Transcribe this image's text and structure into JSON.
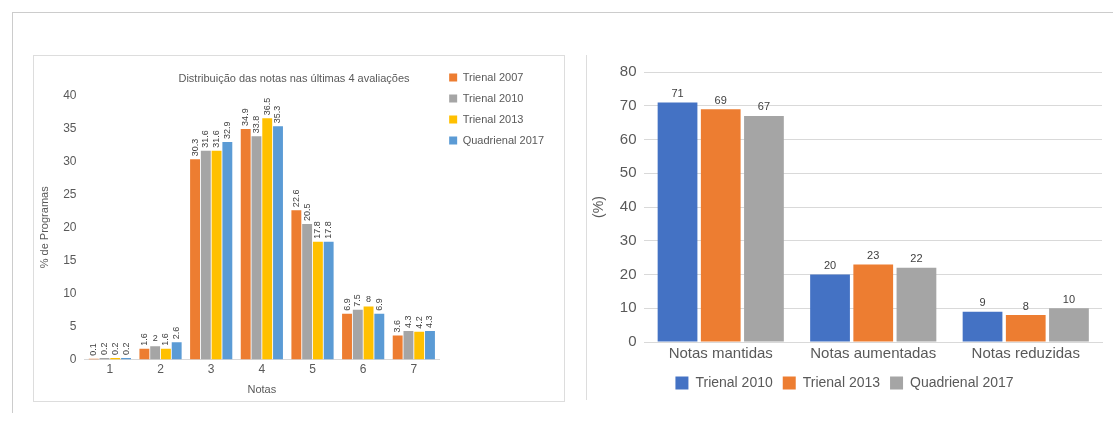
{
  "chart_data": [
    {
      "type": "bar",
      "title": "Distribuição das notas nas últimas 4 avaliações",
      "xlabel": "Notas",
      "ylabel": "% de Programas",
      "categories": [
        "1",
        "2",
        "3",
        "4",
        "5",
        "6",
        "7"
      ],
      "series": [
        {
          "name": "Trienal 2007",
          "color": "#ed7d31",
          "values": [
            0.1,
            1.6,
            30.3,
            34.9,
            22.6,
            6.9,
            3.6
          ]
        },
        {
          "name": "Trienal 2010",
          "color": "#a5a5a5",
          "values": [
            0.2,
            2,
            31.6,
            33.8,
            20.5,
            7.5,
            4.3
          ]
        },
        {
          "name": "Trienal 2013",
          "color": "#ffc000",
          "values": [
            0.2,
            1.6,
            31.6,
            36.5,
            17.8,
            8,
            4.2
          ]
        },
        {
          "name": "Quadrienal 2017",
          "color": "#5b9bd5",
          "values": [
            0.2,
            2.6,
            32.9,
            35.3,
            17.8,
            6.9,
            4.3
          ]
        }
      ],
      "ylim": [
        0,
        40
      ],
      "yticks": [
        0,
        5,
        10,
        15,
        20,
        25,
        30,
        35,
        40
      ],
      "grid": false,
      "legend": "right",
      "data_labels": true
    },
    {
      "type": "bar",
      "ylabel": "(%)",
      "categories": [
        "Notas mantidas",
        "Notas aumentadas",
        "Notas reduzidas"
      ],
      "series": [
        {
          "name": "Trienal 2010",
          "color": "#4472c4",
          "values": [
            71,
            20,
            9
          ]
        },
        {
          "name": "Trienal 2013",
          "color": "#ed7d31",
          "values": [
            69,
            23,
            8
          ]
        },
        {
          "name": "Quadrienal 2017",
          "color": "#a5a5a5",
          "values": [
            67,
            22,
            10
          ]
        }
      ],
      "ylim": [
        0,
        80
      ],
      "yticks": [
        0,
        10,
        20,
        30,
        40,
        50,
        60,
        70,
        80
      ],
      "grid": "y",
      "legend": "bottom",
      "data_labels": true
    }
  ]
}
